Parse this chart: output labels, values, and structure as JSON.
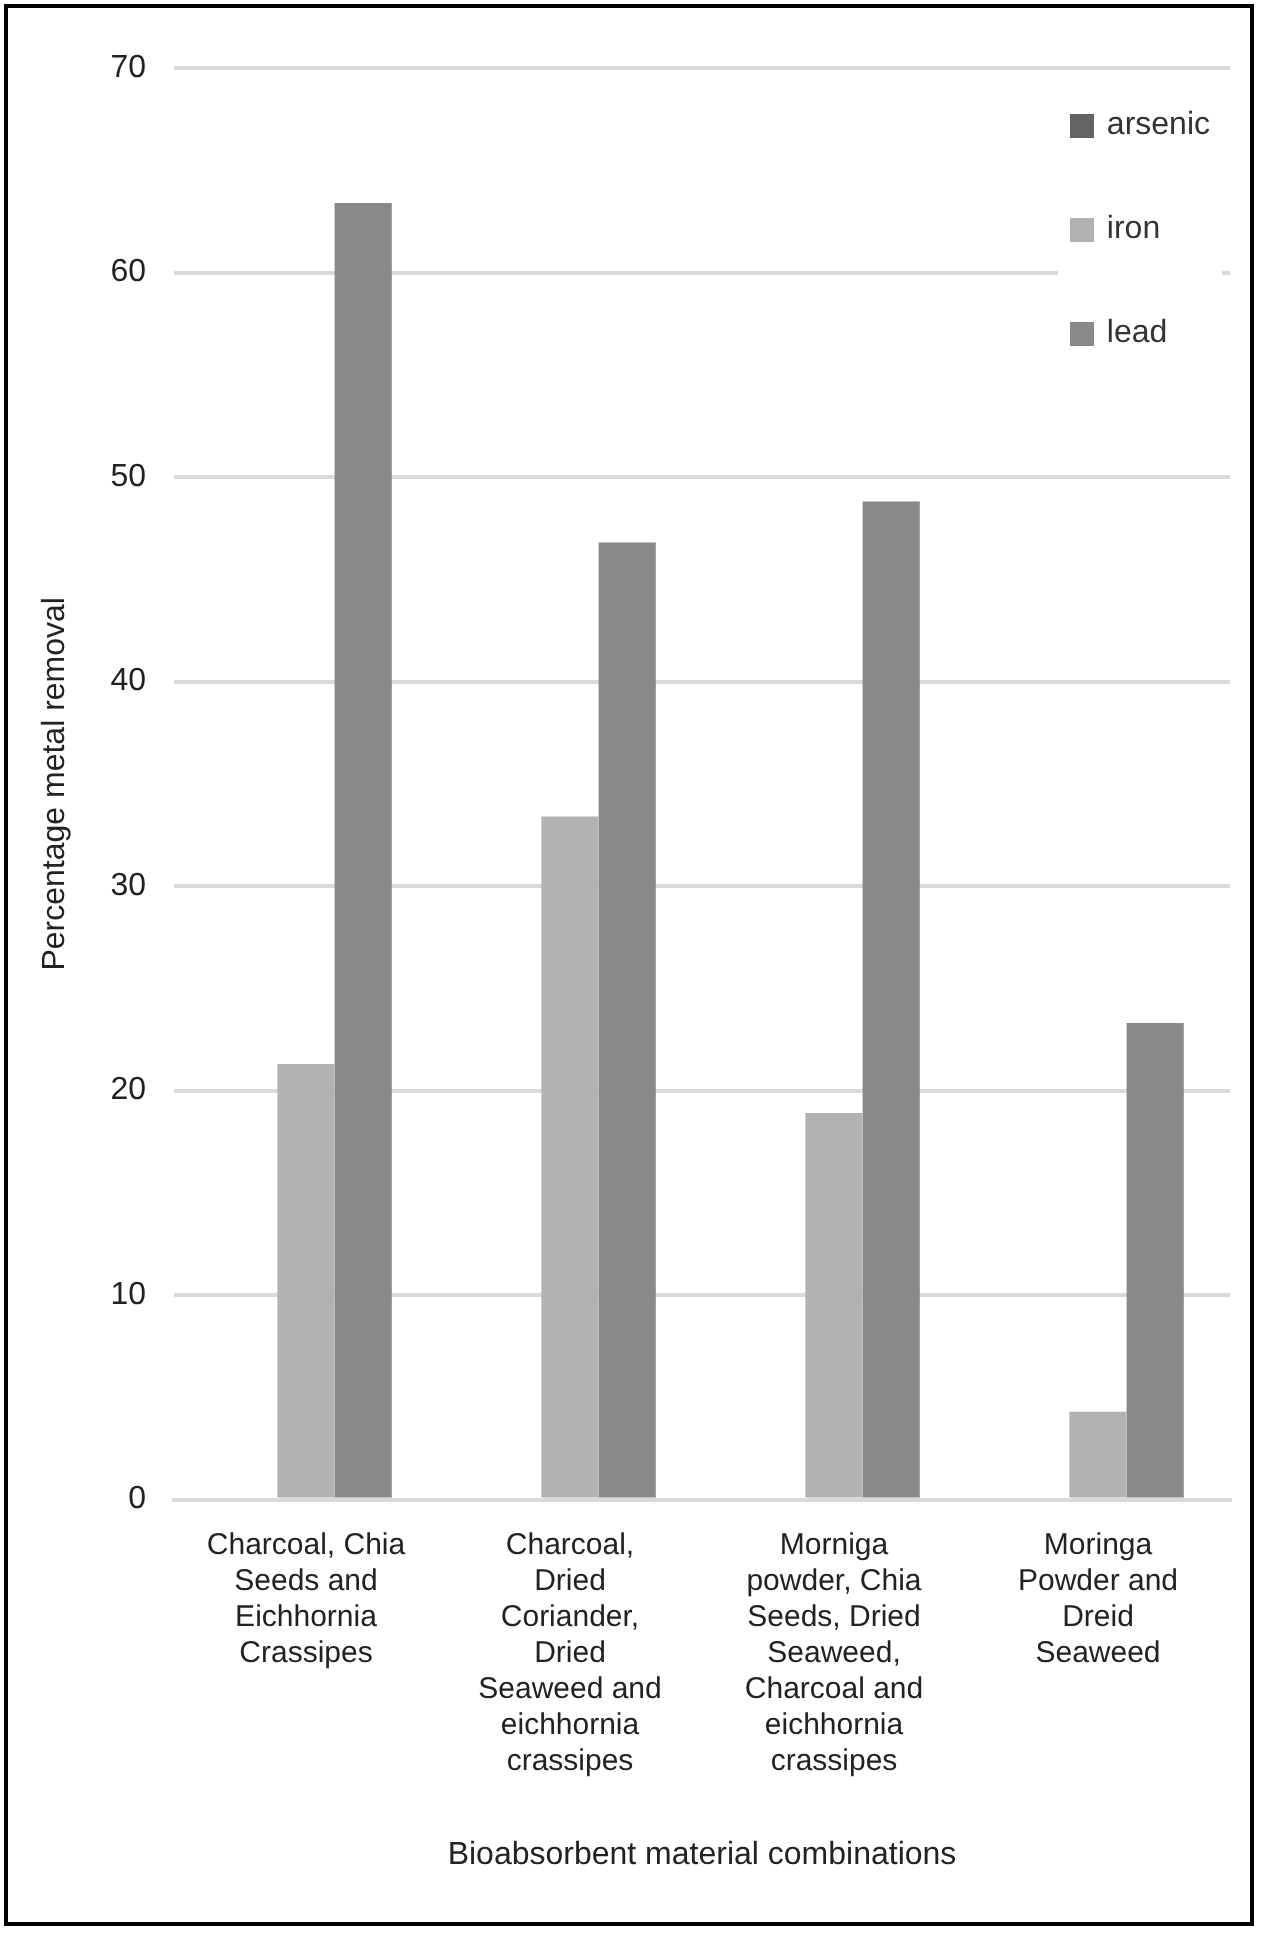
{
  "chart_data": {
    "type": "bar",
    "xlabel": "Bioabsorbent material combinations",
    "ylabel": "Percentage metal removal",
    "categories": [
      "Charcoal, Chia Seeds and Eichhornia Crassipes",
      "Charcoal, Dried Coriander, Dried Seaweed and eichhornia crassipes",
      "Morniga powder, Chia Seeds, Dried Seaweed, Charcoal and eichhornia crassipes",
      "Moringa Powder and Dreid Seaweed"
    ],
    "series": [
      {
        "name": "arsenic",
        "color": "#636363",
        "values": [
          0,
          0,
          0,
          0
        ]
      },
      {
        "name": "iron",
        "color": "#b2b2b2",
        "values": [
          21.3,
          33.4,
          18.9,
          4.3
        ]
      },
      {
        "name": "lead",
        "color": "#898989",
        "values": [
          63.4,
          46.8,
          48.8,
          23.3
        ]
      }
    ],
    "ylim": [
      0,
      70
    ],
    "yticks": [
      0,
      10,
      20,
      30,
      40,
      50,
      60,
      70
    ],
    "grid": "y",
    "legend": "top right"
  }
}
